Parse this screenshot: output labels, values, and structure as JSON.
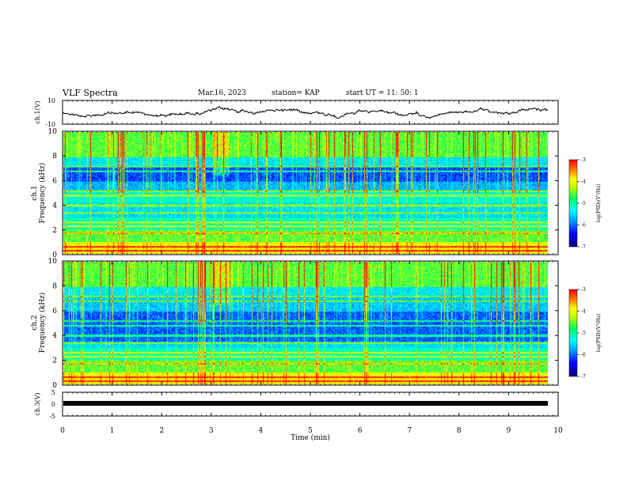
{
  "header": {
    "title": "VLF Spectra",
    "date": "Mar.16, 2023",
    "station": "station= KAP",
    "start": "start  UT =   11: 50: 1"
  },
  "chart_data": [
    {
      "type": "line",
      "panel": "ch1-waveform",
      "ylabel": "ch.1(V)",
      "ylim": [
        -10,
        10
      ],
      "yticks": [
        "10",
        "-10"
      ],
      "x_range": [
        0,
        9.83
      ]
    },
    {
      "type": "heatmap",
      "panel": "ch1-spectrogram",
      "ylabel": "ch.1\nFrequency (kHz)",
      "ylim": [
        0,
        10
      ],
      "yticks": [
        "0",
        "2",
        "4",
        "6",
        "8",
        "10"
      ],
      "colorbar": {
        "ticks": [
          "-3",
          "-4",
          "-5",
          "-6",
          "-7"
        ],
        "label": "log(PSD)(V²/Hz)"
      }
    },
    {
      "type": "heatmap",
      "panel": "ch2-spectrogram",
      "ylabel": "ch.2\nFrequency (kHz)",
      "ylim": [
        0,
        10
      ],
      "yticks": [
        "0",
        "2",
        "4",
        "6",
        "8",
        "10"
      ],
      "colorbar": {
        "ticks": [
          "-3",
          "-4",
          "-5",
          "-6",
          "-7"
        ],
        "label": "log(PSD)(V²/Hz)"
      }
    },
    {
      "type": "line",
      "panel": "ch3-waveform",
      "ylabel": "ch.3(V)",
      "ylim": [
        -5,
        5
      ],
      "yticks": [
        "5",
        "0",
        "-5"
      ]
    }
  ],
  "xaxis": {
    "label": "Time (min)",
    "ticks": [
      "0",
      "1",
      "2",
      "3",
      "4",
      "5",
      "6",
      "7",
      "8",
      "9",
      "10"
    ],
    "xlim": [
      0,
      10
    ]
  },
  "colors": {
    "colormap": [
      "#000080",
      "#0000ff",
      "#00a0ff",
      "#00ffff",
      "#00ff60",
      "#c0ff00",
      "#ffff00",
      "#ff8000",
      "#ff0000"
    ]
  }
}
